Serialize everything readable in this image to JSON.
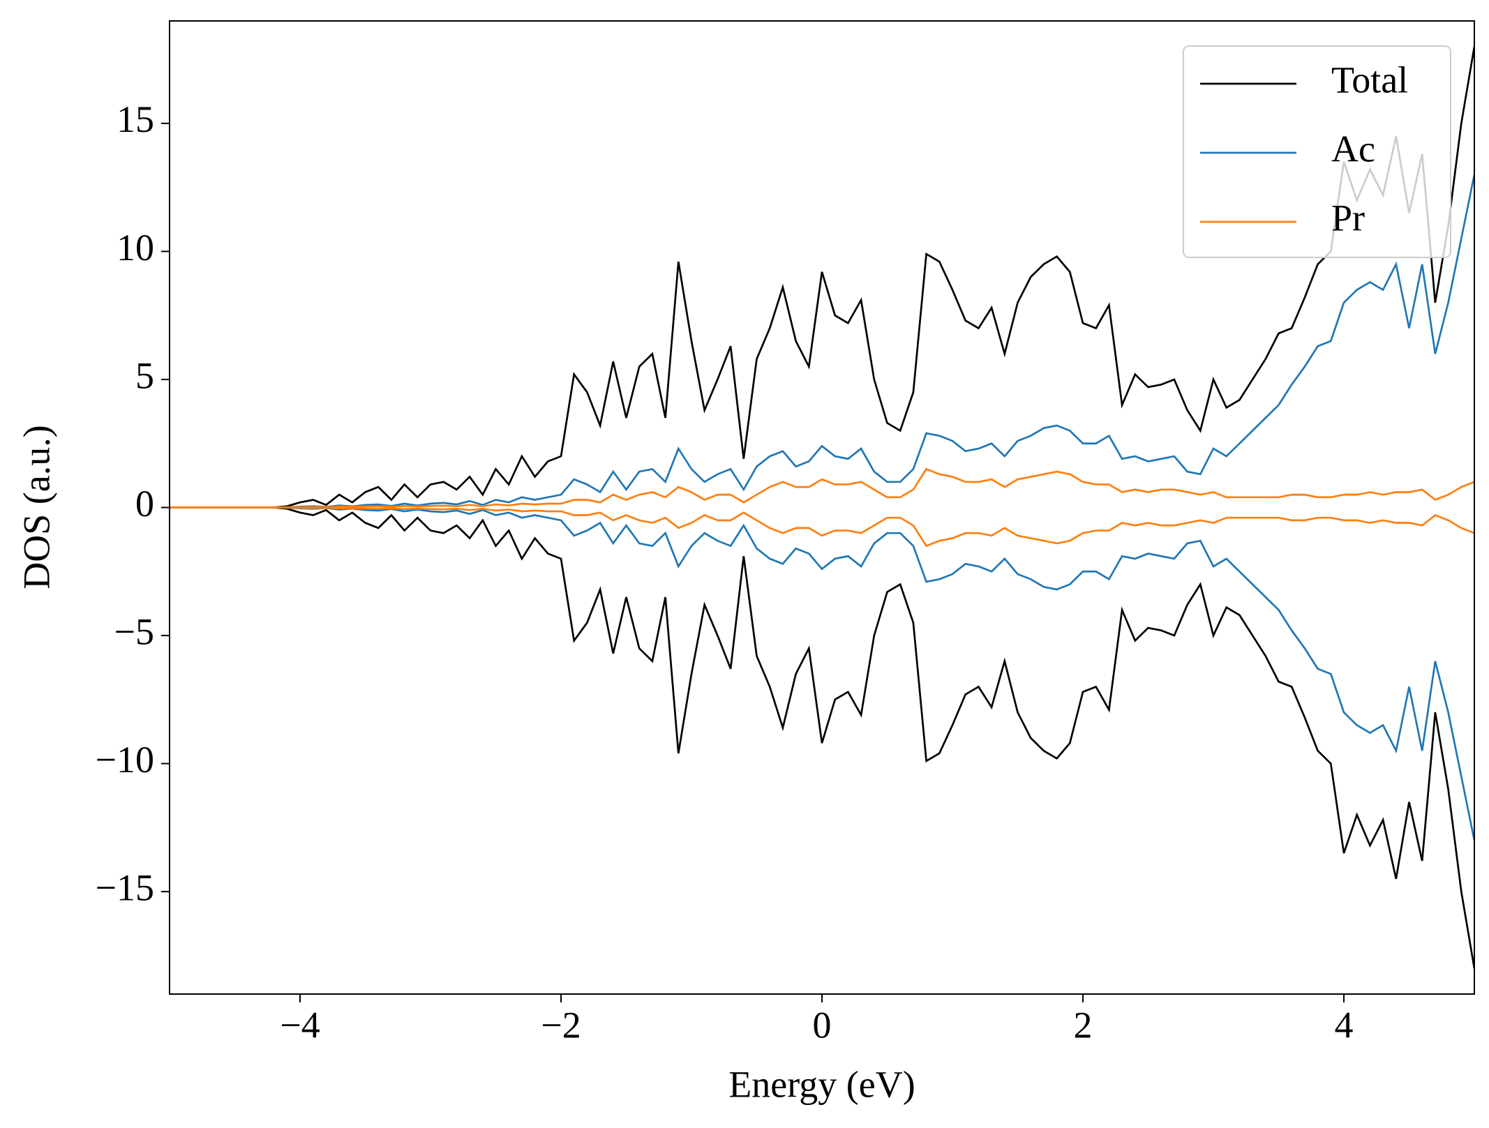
{
  "chart_data": {
    "type": "line",
    "xlabel": "Energy (eV)",
    "ylabel": "DOS (a.u.)",
    "xlim": [
      -5,
      5
    ],
    "ylim": [
      -19,
      19
    ],
    "xticks": [
      {
        "value": -4,
        "label": "−4"
      },
      {
        "value": -2,
        "label": "−2"
      },
      0,
      2,
      4
    ],
    "yticks": [
      {
        "value": -15,
        "label": "−15"
      },
      {
        "value": -10,
        "label": "−10"
      },
      {
        "value": -5,
        "label": "−5"
      },
      0,
      5,
      10,
      15
    ],
    "grid": false,
    "legend": "upper right",
    "x": [
      -5,
      -4.9,
      -4.8,
      -4.7,
      -4.6,
      -4.5,
      -4.4,
      -4.3,
      -4.2,
      -4.1,
      -4,
      -3.9,
      -3.8,
      -3.7,
      -3.6,
      -3.5,
      -3.4,
      -3.3,
      -3.2,
      -3.1,
      -3,
      -2.9,
      -2.8,
      -2.7,
      -2.6,
      -2.5,
      -2.4,
      -2.3,
      -2.2,
      -2.1,
      -2,
      -1.9,
      -1.8,
      -1.7,
      -1.6,
      -1.5,
      -1.4,
      -1.3,
      -1.2,
      -1.1,
      -1,
      -0.9,
      -0.8,
      -0.7,
      -0.6,
      -0.5,
      -0.4,
      -0.3,
      -0.2,
      -0.1,
      0,
      0.1,
      0.2,
      0.3,
      0.4,
      0.5,
      0.6,
      0.7,
      0.8,
      0.9,
      1,
      1.1,
      1.2,
      1.3,
      1.4,
      1.5,
      1.6,
      1.7,
      1.8,
      1.9,
      2,
      2.1,
      2.2,
      2.3,
      2.4,
      2.5,
      2.6,
      2.7,
      2.8,
      2.9,
      3,
      3.1,
      3.2,
      3.3,
      3.4,
      3.5,
      3.6,
      3.7,
      3.8,
      3.9,
      4,
      4.1,
      4.2,
      4.3,
      4.4,
      4.5,
      4.6,
      4.7,
      4.8,
      4.9,
      5
    ],
    "series": [
      {
        "name": "Total",
        "color": "#000000",
        "values": [
          0,
          0,
          0,
          0,
          0,
          0,
          0,
          0,
          0,
          0.05,
          0.2,
          0.3,
          0.1,
          0.5,
          0.2,
          0.6,
          0.8,
          0.3,
          0.9,
          0.4,
          0.9,
          1.0,
          0.7,
          1.2,
          0.5,
          1.5,
          0.9,
          2.0,
          1.2,
          1.8,
          2.0,
          5.2,
          4.5,
          3.2,
          5.7,
          3.5,
          5.5,
          6.0,
          3.5,
          9.6,
          6.5,
          3.8,
          5.0,
          6.3,
          1.9,
          5.8,
          7.0,
          8.6,
          6.5,
          5.5,
          9.2,
          7.5,
          7.2,
          8.1,
          5.0,
          3.3,
          3.0,
          4.5,
          9.9,
          9.6,
          8.5,
          7.3,
          7.0,
          7.8,
          6.0,
          8.0,
          9.0,
          9.5,
          9.8,
          9.2,
          7.2,
          7.0,
          7.9,
          4.0,
          5.2,
          4.7,
          4.8,
          5.0,
          3.8,
          3.0,
          5.0,
          3.9,
          4.2,
          5.0,
          5.8,
          6.8,
          7.0,
          8.2,
          9.5,
          10.0,
          13.5,
          12.0,
          13.2,
          12.2,
          14.5,
          11.5,
          13.8,
          8.0,
          11.0,
          15.0,
          18.0
        ],
        "values_down": [
          0,
          0,
          0,
          0,
          0,
          0,
          0,
          0,
          0,
          -0.05,
          -0.2,
          -0.3,
          -0.1,
          -0.5,
          -0.2,
          -0.6,
          -0.8,
          -0.3,
          -0.9,
          -0.4,
          -0.9,
          -1.0,
          -0.7,
          -1.2,
          -0.5,
          -1.5,
          -0.9,
          -2.0,
          -1.2,
          -1.8,
          -2.0,
          -5.2,
          -4.5,
          -3.2,
          -5.7,
          -3.5,
          -5.5,
          -6.0,
          -3.5,
          -9.6,
          -6.5,
          -3.8,
          -5.0,
          -6.3,
          -1.9,
          -5.8,
          -7.0,
          -8.6,
          -6.5,
          -5.5,
          -9.2,
          -7.5,
          -7.2,
          -8.1,
          -5.0,
          -3.3,
          -3.0,
          -4.5,
          -9.9,
          -9.6,
          -8.5,
          -7.3,
          -7.0,
          -7.8,
          -6.0,
          -8.0,
          -9.0,
          -9.5,
          -9.8,
          -9.2,
          -7.2,
          -7.0,
          -7.9,
          -4.0,
          -5.2,
          -4.7,
          -4.8,
          -5.0,
          -3.8,
          -3.0,
          -5.0,
          -3.9,
          -4.2,
          -5.0,
          -5.8,
          -6.8,
          -7.0,
          -8.2,
          -9.5,
          -10.0,
          -13.5,
          -12.0,
          -13.2,
          -12.2,
          -14.5,
          -11.5,
          -13.8,
          -8.0,
          -11.0,
          -15.0,
          -18.0
        ]
      },
      {
        "name": "Ac",
        "color": "#1f77b4",
        "values": [
          0,
          0,
          0,
          0,
          0,
          0,
          0,
          0,
          0,
          0.01,
          0.03,
          0.05,
          0.02,
          0.08,
          0.04,
          0.1,
          0.12,
          0.06,
          0.15,
          0.08,
          0.15,
          0.18,
          0.12,
          0.25,
          0.1,
          0.3,
          0.2,
          0.4,
          0.3,
          0.4,
          0.5,
          1.1,
          0.9,
          0.6,
          1.4,
          0.7,
          1.4,
          1.5,
          1.0,
          2.3,
          1.5,
          1.0,
          1.3,
          1.5,
          0.7,
          1.6,
          2.0,
          2.2,
          1.6,
          1.8,
          2.4,
          2.0,
          1.9,
          2.3,
          1.4,
          1.0,
          1.0,
          1.5,
          2.9,
          2.8,
          2.6,
          2.2,
          2.3,
          2.5,
          2.0,
          2.6,
          2.8,
          3.1,
          3.2,
          3.0,
          2.5,
          2.5,
          2.8,
          1.9,
          2.0,
          1.8,
          1.9,
          2.0,
          1.4,
          1.3,
          2.3,
          2.0,
          2.5,
          3.0,
          3.5,
          4.0,
          4.8,
          5.5,
          6.3,
          6.5,
          8.0,
          8.5,
          8.8,
          8.5,
          9.5,
          7.0,
          9.5,
          6.0,
          8.0,
          10.5,
          13.0
        ],
        "values_down": [
          0,
          0,
          0,
          0,
          0,
          0,
          0,
          0,
          0,
          -0.01,
          -0.03,
          -0.05,
          -0.02,
          -0.08,
          -0.04,
          -0.1,
          -0.12,
          -0.06,
          -0.15,
          -0.08,
          -0.15,
          -0.18,
          -0.12,
          -0.25,
          -0.1,
          -0.3,
          -0.2,
          -0.4,
          -0.3,
          -0.4,
          -0.5,
          -1.1,
          -0.9,
          -0.6,
          -1.4,
          -0.7,
          -1.4,
          -1.5,
          -1.0,
          -2.3,
          -1.5,
          -1.0,
          -1.3,
          -1.5,
          -0.7,
          -1.6,
          -2.0,
          -2.2,
          -1.6,
          -1.8,
          -2.4,
          -2.0,
          -1.9,
          -2.3,
          -1.4,
          -1.0,
          -1.0,
          -1.5,
          -2.9,
          -2.8,
          -2.6,
          -2.2,
          -2.3,
          -2.5,
          -2.0,
          -2.6,
          -2.8,
          -3.1,
          -3.2,
          -3.0,
          -2.5,
          -2.5,
          -2.8,
          -1.9,
          -2.0,
          -1.8,
          -1.9,
          -2.0,
          -1.4,
          -1.3,
          -2.3,
          -2.0,
          -2.5,
          -3.0,
          -3.5,
          -4.0,
          -4.8,
          -5.5,
          -6.3,
          -6.5,
          -8.0,
          -8.5,
          -8.8,
          -8.5,
          -9.5,
          -7.0,
          -9.5,
          -6.0,
          -8.0,
          -10.5,
          -13.0
        ]
      },
      {
        "name": "Pr",
        "color": "#ff7f0e",
        "values": [
          0,
          0,
          0,
          0,
          0,
          0,
          0,
          0,
          0,
          0.0,
          0.01,
          0.02,
          0.01,
          0.03,
          0.02,
          0.04,
          0.05,
          0.03,
          0.06,
          0.04,
          0.06,
          0.07,
          0.05,
          0.1,
          0.05,
          0.12,
          0.08,
          0.15,
          0.12,
          0.15,
          0.15,
          0.3,
          0.3,
          0.2,
          0.5,
          0.3,
          0.5,
          0.6,
          0.4,
          0.8,
          0.6,
          0.3,
          0.5,
          0.5,
          0.2,
          0.5,
          0.8,
          1.0,
          0.8,
          0.8,
          1.1,
          0.9,
          0.9,
          1.0,
          0.7,
          0.4,
          0.4,
          0.7,
          1.5,
          1.3,
          1.2,
          1.0,
          1.0,
          1.1,
          0.8,
          1.1,
          1.2,
          1.3,
          1.4,
          1.3,
          1.0,
          0.9,
          0.9,
          0.6,
          0.7,
          0.6,
          0.7,
          0.7,
          0.6,
          0.5,
          0.6,
          0.4,
          0.4,
          0.4,
          0.4,
          0.4,
          0.5,
          0.5,
          0.4,
          0.4,
          0.5,
          0.5,
          0.6,
          0.5,
          0.6,
          0.6,
          0.7,
          0.3,
          0.5,
          0.8,
          1.0
        ],
        "values_down": [
          0,
          0,
          0,
          0,
          0,
          0,
          0,
          0,
          0,
          0.0,
          -0.01,
          -0.02,
          -0.01,
          -0.03,
          -0.02,
          -0.04,
          -0.05,
          -0.03,
          -0.06,
          -0.04,
          -0.06,
          -0.07,
          -0.05,
          -0.1,
          -0.05,
          -0.12,
          -0.08,
          -0.15,
          -0.12,
          -0.15,
          -0.15,
          -0.3,
          -0.3,
          -0.2,
          -0.5,
          -0.3,
          -0.5,
          -0.6,
          -0.4,
          -0.8,
          -0.6,
          -0.3,
          -0.5,
          -0.5,
          -0.2,
          -0.5,
          -0.8,
          -1.0,
          -0.8,
          -0.8,
          -1.1,
          -0.9,
          -0.9,
          -1.0,
          -0.7,
          -0.4,
          -0.4,
          -0.7,
          -1.5,
          -1.3,
          -1.2,
          -1.0,
          -1.0,
          -1.1,
          -0.8,
          -1.1,
          -1.2,
          -1.3,
          -1.4,
          -1.3,
          -1.0,
          -0.9,
          -0.9,
          -0.6,
          -0.7,
          -0.6,
          -0.7,
          -0.7,
          -0.6,
          -0.5,
          -0.6,
          -0.4,
          -0.4,
          -0.4,
          -0.4,
          -0.4,
          -0.5,
          -0.5,
          -0.4,
          -0.4,
          -0.5,
          -0.5,
          -0.6,
          -0.5,
          -0.6,
          -0.6,
          -0.7,
          -0.3,
          -0.5,
          -0.8,
          -1.0
        ]
      }
    ]
  }
}
